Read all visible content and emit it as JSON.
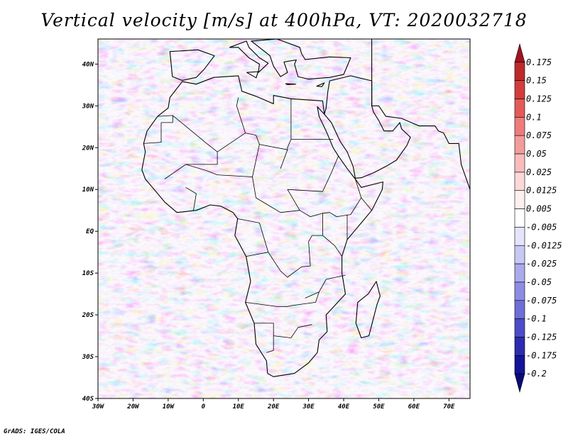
{
  "title": "Vertical velocity [m/s] at 400hPa, VT: 2020032718",
  "credit": "GrADS: IGES/COLA",
  "map": {
    "lon_range": [
      -30,
      76
    ],
    "lat_range": [
      -40,
      46
    ],
    "lon_ticks": [
      {
        "value": -30,
        "label": "30W"
      },
      {
        "value": -20,
        "label": "20W"
      },
      {
        "value": -10,
        "label": "10W"
      },
      {
        "value": 0,
        "label": "0"
      },
      {
        "value": 10,
        "label": "10E"
      },
      {
        "value": 20,
        "label": "20E"
      },
      {
        "value": 30,
        "label": "30E"
      },
      {
        "value": 40,
        "label": "40E"
      },
      {
        "value": 50,
        "label": "50E"
      },
      {
        "value": 60,
        "label": "60E"
      },
      {
        "value": 70,
        "label": "70E"
      }
    ],
    "lat_ticks": [
      {
        "value": 40,
        "label": "40N"
      },
      {
        "value": 30,
        "label": "30N"
      },
      {
        "value": 20,
        "label": "20N"
      },
      {
        "value": 10,
        "label": "10N"
      },
      {
        "value": 0,
        "label": "EQ"
      },
      {
        "value": -10,
        "label": "10S"
      },
      {
        "value": -20,
        "label": "20S"
      },
      {
        "value": -30,
        "label": "30S"
      },
      {
        "value": -40,
        "label": "40S"
      }
    ]
  },
  "colorbar": {
    "labels": [
      "0.175",
      "0.15",
      "0.125",
      "0.1",
      "0.075",
      "0.05",
      "0.025",
      "0.0125",
      "0.005",
      "-0.005",
      "-0.0125",
      "-0.025",
      "-0.05",
      "-0.075",
      "-0.1",
      "-0.125",
      "-0.175",
      "-0.2"
    ],
    "colors": [
      "#a0141e",
      "#be2a2a",
      "#d43c3c",
      "#e45a5a",
      "#ee7c7c",
      "#f49c9c",
      "#f8bcbc",
      "#fcd8d8",
      "#fff0f0",
      "#ffffff",
      "#e4e4fc",
      "#c8c8f4",
      "#aaaaec",
      "#8c8ce4",
      "#6e6ed8",
      "#4c4cc8",
      "#2c2cb0",
      "#141498",
      "#0a0a78"
    ]
  },
  "colors": {
    "land_outline": "#000000",
    "background_field": "#b4b4ee"
  }
}
